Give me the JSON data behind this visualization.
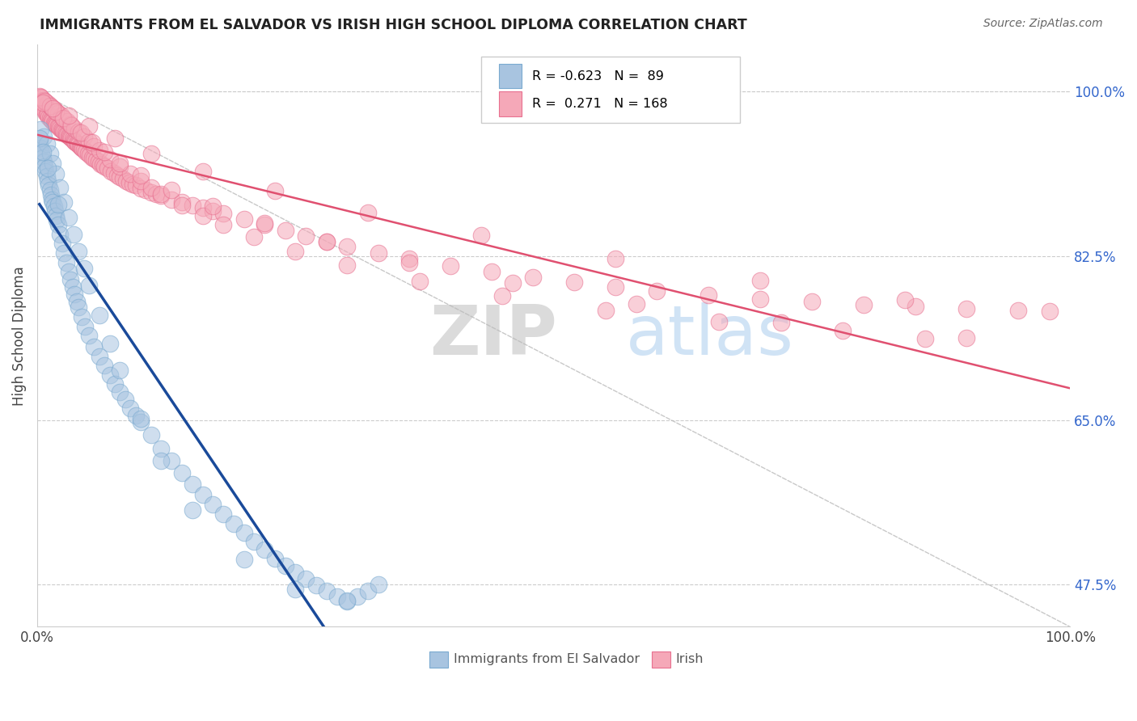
{
  "title": "IMMIGRANTS FROM EL SALVADOR VS IRISH HIGH SCHOOL DIPLOMA CORRELATION CHART",
  "source": "Source: ZipAtlas.com",
  "ylabel": "High School Diploma",
  "ytick_labels": [
    "47.5%",
    "65.0%",
    "82.5%",
    "100.0%"
  ],
  "ytick_values": [
    0.475,
    0.65,
    0.825,
    1.0
  ],
  "legend_label1": "Immigrants from El Salvador",
  "legend_label2": "Irish",
  "r1": "-0.623",
  "n1": "89",
  "r2": "0.271",
  "n2": "168",
  "color_blue": "#A8C4E0",
  "color_blue_edge": "#7AAAD0",
  "color_blue_line": "#1A4A9A",
  "color_pink": "#F5A8B8",
  "color_pink_edge": "#E87090",
  "color_pink_line": "#E05070",
  "background_color": "#FFFFFF",
  "watermark_zip": "ZIP",
  "watermark_atlas": "atlas",
  "blue_scatter_x": [
    0.002,
    0.003,
    0.004,
    0.005,
    0.006,
    0.007,
    0.008,
    0.009,
    0.01,
    0.011,
    0.012,
    0.013,
    0.014,
    0.015,
    0.016,
    0.017,
    0.018,
    0.019,
    0.02,
    0.022,
    0.024,
    0.026,
    0.028,
    0.03,
    0.032,
    0.034,
    0.036,
    0.038,
    0.04,
    0.043,
    0.046,
    0.05,
    0.055,
    0.06,
    0.065,
    0.07,
    0.075,
    0.08,
    0.085,
    0.09,
    0.095,
    0.1,
    0.11,
    0.12,
    0.13,
    0.14,
    0.15,
    0.16,
    0.17,
    0.18,
    0.19,
    0.2,
    0.21,
    0.22,
    0.23,
    0.24,
    0.25,
    0.26,
    0.27,
    0.28,
    0.29,
    0.3,
    0.31,
    0.32,
    0.33,
    0.003,
    0.006,
    0.009,
    0.012,
    0.015,
    0.018,
    0.022,
    0.026,
    0.03,
    0.035,
    0.04,
    0.045,
    0.05,
    0.06,
    0.07,
    0.08,
    0.1,
    0.12,
    0.15,
    0.2,
    0.25,
    0.3,
    0.002,
    0.005,
    0.01,
    0.02
  ],
  "blue_scatter_y": [
    0.945,
    0.94,
    0.935,
    0.93,
    0.925,
    0.92,
    0.915,
    0.91,
    0.905,
    0.9,
    0.895,
    0.89,
    0.885,
    0.882,
    0.878,
    0.873,
    0.868,
    0.863,
    0.858,
    0.848,
    0.838,
    0.828,
    0.818,
    0.808,
    0.8,
    0.792,
    0.784,
    0.776,
    0.77,
    0.76,
    0.75,
    0.74,
    0.728,
    0.718,
    0.708,
    0.698,
    0.689,
    0.68,
    0.672,
    0.663,
    0.655,
    0.648,
    0.634,
    0.62,
    0.607,
    0.594,
    0.582,
    0.571,
    0.56,
    0.55,
    0.54,
    0.53,
    0.521,
    0.512,
    0.503,
    0.495,
    0.488,
    0.481,
    0.474,
    0.468,
    0.462,
    0.457,
    0.462,
    0.468,
    0.475,
    0.96,
    0.952,
    0.944,
    0.934,
    0.924,
    0.912,
    0.898,
    0.882,
    0.866,
    0.848,
    0.83,
    0.812,
    0.794,
    0.762,
    0.732,
    0.703,
    0.652,
    0.607,
    0.554,
    0.502,
    0.47,
    0.458,
    0.95,
    0.936,
    0.918,
    0.88
  ],
  "pink_scatter_x": [
    0.001,
    0.002,
    0.003,
    0.004,
    0.005,
    0.006,
    0.007,
    0.008,
    0.009,
    0.01,
    0.011,
    0.012,
    0.013,
    0.014,
    0.015,
    0.016,
    0.017,
    0.018,
    0.019,
    0.02,
    0.021,
    0.022,
    0.023,
    0.024,
    0.025,
    0.026,
    0.027,
    0.028,
    0.029,
    0.03,
    0.031,
    0.032,
    0.033,
    0.034,
    0.035,
    0.036,
    0.037,
    0.038,
    0.039,
    0.04,
    0.041,
    0.042,
    0.043,
    0.044,
    0.045,
    0.047,
    0.049,
    0.051,
    0.053,
    0.055,
    0.057,
    0.059,
    0.061,
    0.063,
    0.065,
    0.068,
    0.071,
    0.074,
    0.077,
    0.08,
    0.083,
    0.086,
    0.089,
    0.092,
    0.095,
    0.1,
    0.105,
    0.11,
    0.115,
    0.12,
    0.13,
    0.14,
    0.15,
    0.16,
    0.17,
    0.18,
    0.2,
    0.22,
    0.24,
    0.26,
    0.28,
    0.3,
    0.33,
    0.36,
    0.4,
    0.44,
    0.48,
    0.52,
    0.56,
    0.6,
    0.65,
    0.7,
    0.75,
    0.8,
    0.85,
    0.9,
    0.95,
    0.98,
    0.002,
    0.004,
    0.006,
    0.008,
    0.01,
    0.012,
    0.014,
    0.016,
    0.018,
    0.02,
    0.023,
    0.026,
    0.029,
    0.032,
    0.036,
    0.04,
    0.045,
    0.05,
    0.055,
    0.06,
    0.07,
    0.08,
    0.09,
    0.1,
    0.11,
    0.12,
    0.14,
    0.16,
    0.18,
    0.21,
    0.25,
    0.3,
    0.37,
    0.45,
    0.55,
    0.66,
    0.78,
    0.9,
    0.003,
    0.007,
    0.012,
    0.018,
    0.025,
    0.033,
    0.042,
    0.053,
    0.065,
    0.08,
    0.1,
    0.13,
    0.17,
    0.22,
    0.28,
    0.36,
    0.46,
    0.58,
    0.72,
    0.86,
    0.005,
    0.015,
    0.03,
    0.05,
    0.075,
    0.11,
    0.16,
    0.23,
    0.32,
    0.43,
    0.56,
    0.7,
    0.84
  ],
  "pink_scatter_y": [
    0.992,
    0.99,
    0.988,
    0.986,
    0.984,
    0.982,
    0.98,
    0.978,
    0.976,
    0.975,
    0.973,
    0.972,
    0.97,
    0.969,
    0.968,
    0.967,
    0.966,
    0.965,
    0.964,
    0.963,
    0.962,
    0.961,
    0.96,
    0.959,
    0.958,
    0.957,
    0.956,
    0.955,
    0.954,
    0.953,
    0.952,
    0.951,
    0.95,
    0.949,
    0.948,
    0.947,
    0.946,
    0.945,
    0.944,
    0.943,
    0.942,
    0.941,
    0.94,
    0.939,
    0.938,
    0.936,
    0.934,
    0.932,
    0.93,
    0.929,
    0.927,
    0.925,
    0.923,
    0.922,
    0.92,
    0.918,
    0.915,
    0.913,
    0.911,
    0.909,
    0.907,
    0.905,
    0.903,
    0.901,
    0.9,
    0.897,
    0.895,
    0.893,
    0.891,
    0.889,
    0.885,
    0.882,
    0.879,
    0.876,
    0.873,
    0.87,
    0.864,
    0.858,
    0.852,
    0.846,
    0.84,
    0.835,
    0.828,
    0.822,
    0.814,
    0.808,
    0.802,
    0.797,
    0.792,
    0.788,
    0.783,
    0.779,
    0.776,
    0.773,
    0.771,
    0.769,
    0.767,
    0.766,
    0.995,
    0.993,
    0.991,
    0.989,
    0.987,
    0.985,
    0.983,
    0.981,
    0.979,
    0.977,
    0.974,
    0.971,
    0.968,
    0.965,
    0.961,
    0.957,
    0.952,
    0.947,
    0.942,
    0.937,
    0.928,
    0.92,
    0.912,
    0.905,
    0.898,
    0.891,
    0.879,
    0.868,
    0.858,
    0.845,
    0.83,
    0.815,
    0.798,
    0.782,
    0.767,
    0.755,
    0.745,
    0.738,
    0.994,
    0.99,
    0.985,
    0.979,
    0.972,
    0.964,
    0.956,
    0.946,
    0.936,
    0.924,
    0.911,
    0.895,
    0.878,
    0.86,
    0.84,
    0.818,
    0.796,
    0.774,
    0.754,
    0.737,
    0.988,
    0.982,
    0.974,
    0.963,
    0.95,
    0.934,
    0.915,
    0.894,
    0.871,
    0.847,
    0.822,
    0.799,
    0.778
  ]
}
